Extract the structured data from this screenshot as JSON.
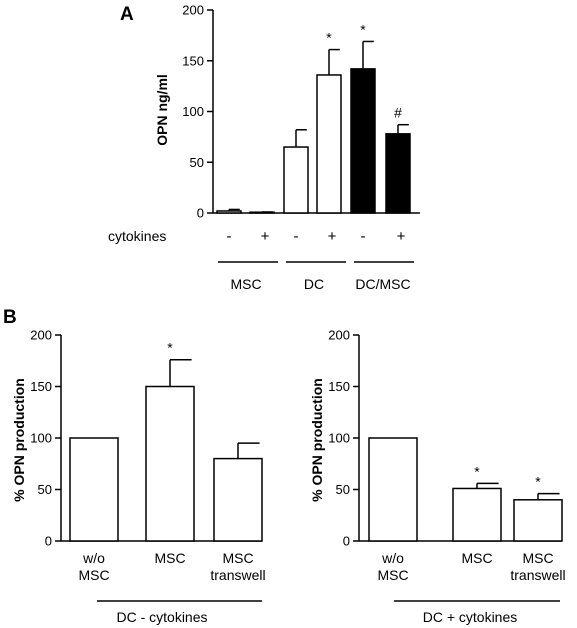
{
  "chart_data": [
    {
      "panel_label": "A",
      "type": "bar",
      "ylabel": "OPN ng/ml",
      "ylim": [
        0,
        200
      ],
      "yticks": [
        0,
        50,
        100,
        150,
        200
      ],
      "row_label": "cytokines",
      "signs": [
        "-",
        "+",
        "-",
        "+",
        "-",
        "+"
      ],
      "bars": [
        {
          "value": 2,
          "err": 1.5,
          "fill": "white",
          "annotation": ""
        },
        {
          "value": 0.5,
          "err": 0.5,
          "fill": "white",
          "annotation": ""
        },
        {
          "value": 65,
          "err": 17,
          "fill": "white",
          "annotation": ""
        },
        {
          "value": 136,
          "err": 25,
          "fill": "white",
          "annotation": "*"
        },
        {
          "value": 142,
          "err": 27,
          "fill": "black",
          "annotation": "*"
        },
        {
          "value": 78,
          "err": 9,
          "fill": "black",
          "annotation": "#"
        }
      ],
      "groups": [
        "MSC",
        "DC",
        "DC/MSC"
      ]
    },
    {
      "panel_label": "B",
      "type": "bar",
      "ylabel": "% OPN production",
      "ylim": [
        0,
        200
      ],
      "yticks": [
        0,
        50,
        100,
        150,
        200
      ],
      "categories": [
        [
          "w/o",
          "MSC"
        ],
        [
          "MSC"
        ],
        [
          "MSC",
          "transwell"
        ]
      ],
      "values": [
        100,
        150,
        80
      ],
      "errors": [
        0,
        26,
        15
      ],
      "annotations": [
        "",
        "*",
        ""
      ],
      "group_label": "DC - cytokines"
    },
    {
      "type": "bar",
      "ylabel": "% OPN production",
      "ylim": [
        0,
        200
      ],
      "yticks": [
        0,
        50,
        100,
        150,
        200
      ],
      "categories": [
        [
          "w/o",
          "MSC"
        ],
        [
          "MSC"
        ],
        [
          "MSC",
          "transwell"
        ]
      ],
      "values": [
        100,
        51,
        40
      ],
      "errors": [
        0,
        5,
        6
      ],
      "annotations": [
        "",
        "*",
        "*"
      ],
      "group_label": "DC + cytokines"
    }
  ]
}
